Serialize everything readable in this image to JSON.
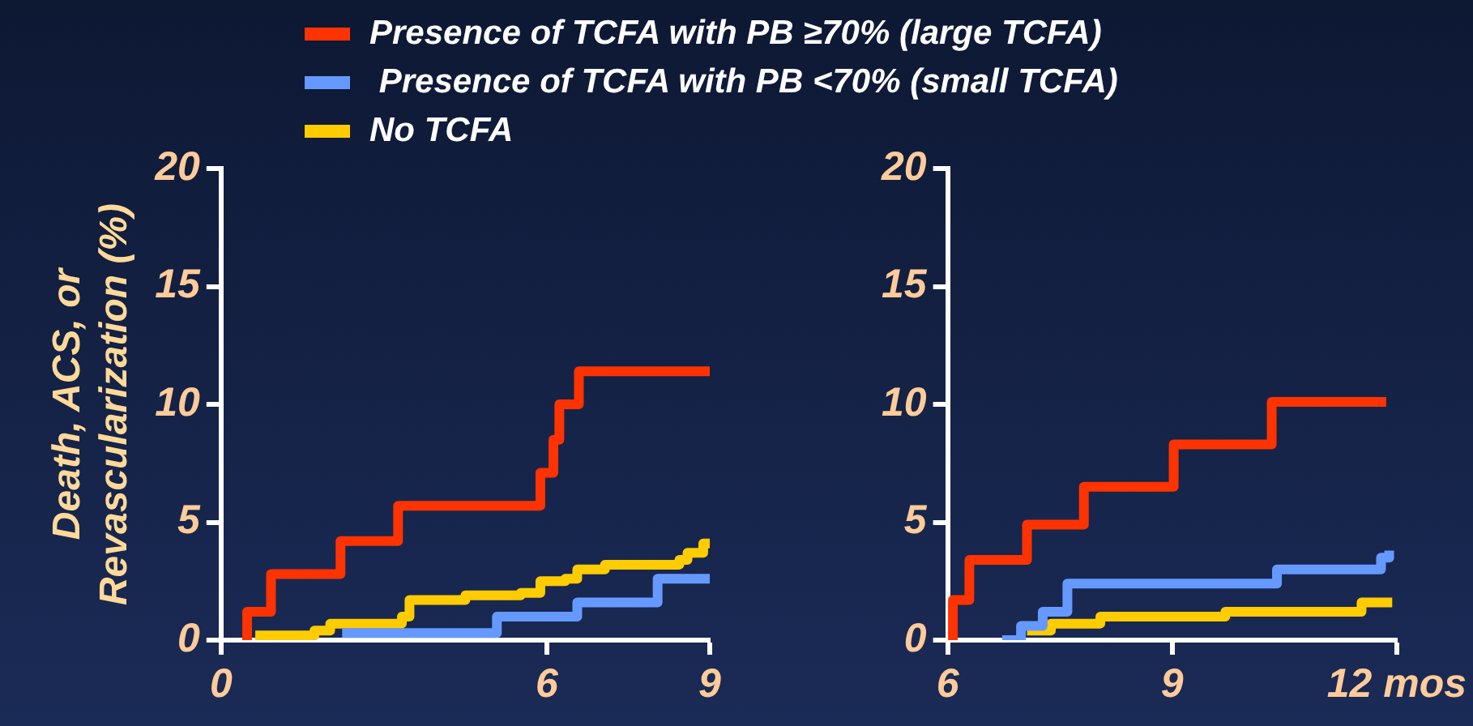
{
  "chart_data": [
    {
      "type": "step",
      "ylabel": "Death, ACS, or\nRevascularization (%)",
      "legend": "top",
      "xlim": [
        0,
        9
      ],
      "xticks": [
        0,
        6,
        9
      ],
      "ylim": [
        0,
        20
      ],
      "yticks": [
        0,
        5,
        10,
        15,
        20
      ],
      "series": [
        {
          "name": "Presence of TCFA with PB ≥70% (large TCFA)",
          "color": "#ff3300",
          "x": [
            0.48,
            0.48,
            0.92,
            2.2,
            3.26,
            5.88,
            6.12,
            6.23,
            6.59,
            9
          ],
          "values": [
            0,
            1.2,
            2.8,
            4.2,
            5.7,
            7.1,
            8.5,
            10,
            11.4,
            11.4
          ]
        },
        {
          "name": " Presence of TCFA with PB <70% (small TCFA)",
          "color": "#6699ff",
          "x": [
            2.23,
            5.08,
            6.56,
            8.04,
            9
          ],
          "values": [
            0.3,
            1,
            1.6,
            2.6,
            2.6
          ]
        },
        {
          "name": "No TCFA",
          "color": "#ffcc00",
          "x": [
            0.63,
            1.72,
            2.01,
            3.33,
            3.47,
            4.5,
            5.52,
            5.88,
            6.34,
            6.56,
            7.07,
            8.44,
            8.59,
            8.88,
            9
          ],
          "values": [
            0.2,
            0.4,
            0.7,
            1,
            1.7,
            1.9,
            2,
            2.5,
            2.6,
            3,
            3.2,
            3.4,
            3.7,
            4.1,
            4.2
          ]
        }
      ]
    },
    {
      "type": "step",
      "xlim": [
        6,
        12
      ],
      "xticks": [
        6,
        9,
        {
          "value": 12,
          "label": "12 mos"
        }
      ],
      "ylim": [
        0,
        20
      ],
      "yticks": [
        0,
        5,
        10,
        15,
        20
      ],
      "series": [
        {
          "color": "#ff3300",
          "x": [
            6.07,
            6.07,
            6.29,
            7.06,
            7.82,
            9.02,
            10.33,
            11.86
          ],
          "values": [
            0,
            1.7,
            3.4,
            4.9,
            6.5,
            8.3,
            10.1,
            10.1
          ]
        },
        {
          "color": "#6699ff",
          "x": [
            6.73,
            6.98,
            7.27,
            7.6,
            10.4,
            11.79,
            11.9
          ],
          "values": [
            0,
            0.6,
            1.2,
            2.4,
            3,
            3.5,
            3.8
          ]
        },
        {
          "color": "#ffcc00",
          "x": [
            7.06,
            7.38,
            8.04,
            9.71,
            11.53,
            11.94
          ],
          "values": [
            0.4,
            0.7,
            1,
            1.2,
            1.6,
            1.6
          ]
        }
      ]
    }
  ]
}
